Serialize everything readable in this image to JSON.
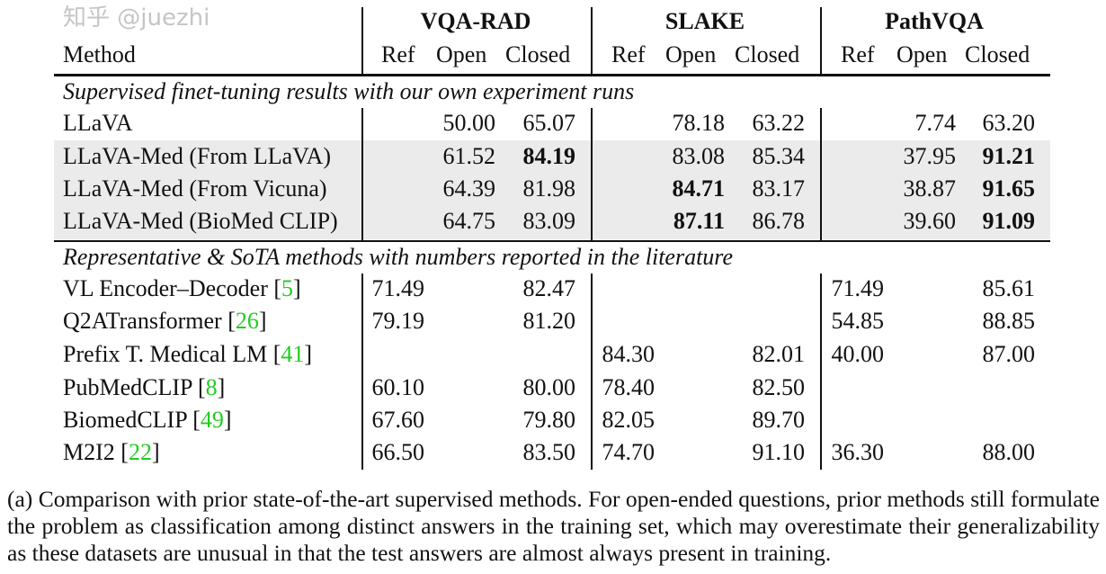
{
  "header": {
    "method_label": "Method",
    "groups": [
      "VQA-RAD",
      "SLAKE",
      "PathVQA"
    ],
    "subcolumns": [
      "Ref",
      "Open",
      "Closed"
    ]
  },
  "sections": [
    {
      "title": "Supervised finet-tuning results with our own experiment runs",
      "shaded_rows": [
        1,
        2,
        3
      ],
      "rows": [
        {
          "method": "LLaVA",
          "ref": "",
          "cells": [
            "",
            "50.00",
            "65.07",
            "",
            "78.18",
            "63.22",
            "",
            "7.74",
            "63.20"
          ],
          "bold": []
        },
        {
          "method": "LLaVA-Med (From LLaVA)",
          "ref": "",
          "cells": [
            "",
            "61.52",
            "84.19",
            "",
            "83.08",
            "85.34",
            "",
            "37.95",
            "91.21"
          ],
          "bold": [
            2,
            8
          ]
        },
        {
          "method": "LLaVA-Med (From Vicuna)",
          "ref": "",
          "cells": [
            "",
            "64.39",
            "81.98",
            "",
            "84.71",
            "83.17",
            "",
            "38.87",
            "91.65"
          ],
          "bold": [
            4,
            8
          ]
        },
        {
          "method": "LLaVA-Med (BioMed CLIP)",
          "ref": "",
          "cells": [
            "",
            "64.75",
            "83.09",
            "",
            "87.11",
            "86.78",
            "",
            "39.60",
            "91.09"
          ],
          "bold": [
            4,
            8
          ]
        }
      ]
    },
    {
      "title": "Representative & SoTA methods with numbers reported in the literature",
      "shaded_rows": [],
      "rows": [
        {
          "method": "VL Encoder–Decoder",
          "ref": "5",
          "cells": [
            "71.49",
            "",
            "82.47",
            "",
            "",
            "",
            "71.49",
            "",
            "85.61"
          ],
          "bold": []
        },
        {
          "method": "Q2ATransformer",
          "ref": "26",
          "cells": [
            "79.19",
            "",
            "81.20",
            "",
            "",
            "",
            "54.85",
            "",
            "88.85"
          ],
          "bold": []
        },
        {
          "method": "Prefix T. Medical LM",
          "ref": "41",
          "cells": [
            "",
            "",
            "",
            "84.30",
            "",
            "82.01",
            "40.00",
            "",
            "87.00"
          ],
          "bold": []
        },
        {
          "method": "PubMedCLIP",
          "ref": "8",
          "cells": [
            "60.10",
            "",
            "80.00",
            "78.40",
            "",
            "82.50",
            "",
            "",
            ""
          ],
          "bold": []
        },
        {
          "method": "BiomedCLIP",
          "ref": "49",
          "cells": [
            "67.60",
            "",
            "79.80",
            "82.05",
            "",
            "89.70",
            "",
            "",
            ""
          ],
          "bold": []
        },
        {
          "method": "M2I2",
          "ref": "22",
          "cells": [
            "66.50",
            "",
            "83.50",
            "74.70",
            "",
            "91.10",
            "36.30",
            "",
            "88.00"
          ],
          "bold": []
        }
      ]
    }
  ],
  "caption": "(a) Comparison with prior state-of-the-art supervised methods. For open-ended questions, prior methods still formulate the problem as classification among distinct answers in the training set, which may overestimate their generalizability as these datasets are unusual in that the test answers are almost always present in training.",
  "watermark": "知乎 @juezhi",
  "colors": {
    "citation": "#22cc22",
    "shade": "#ebebeb"
  }
}
